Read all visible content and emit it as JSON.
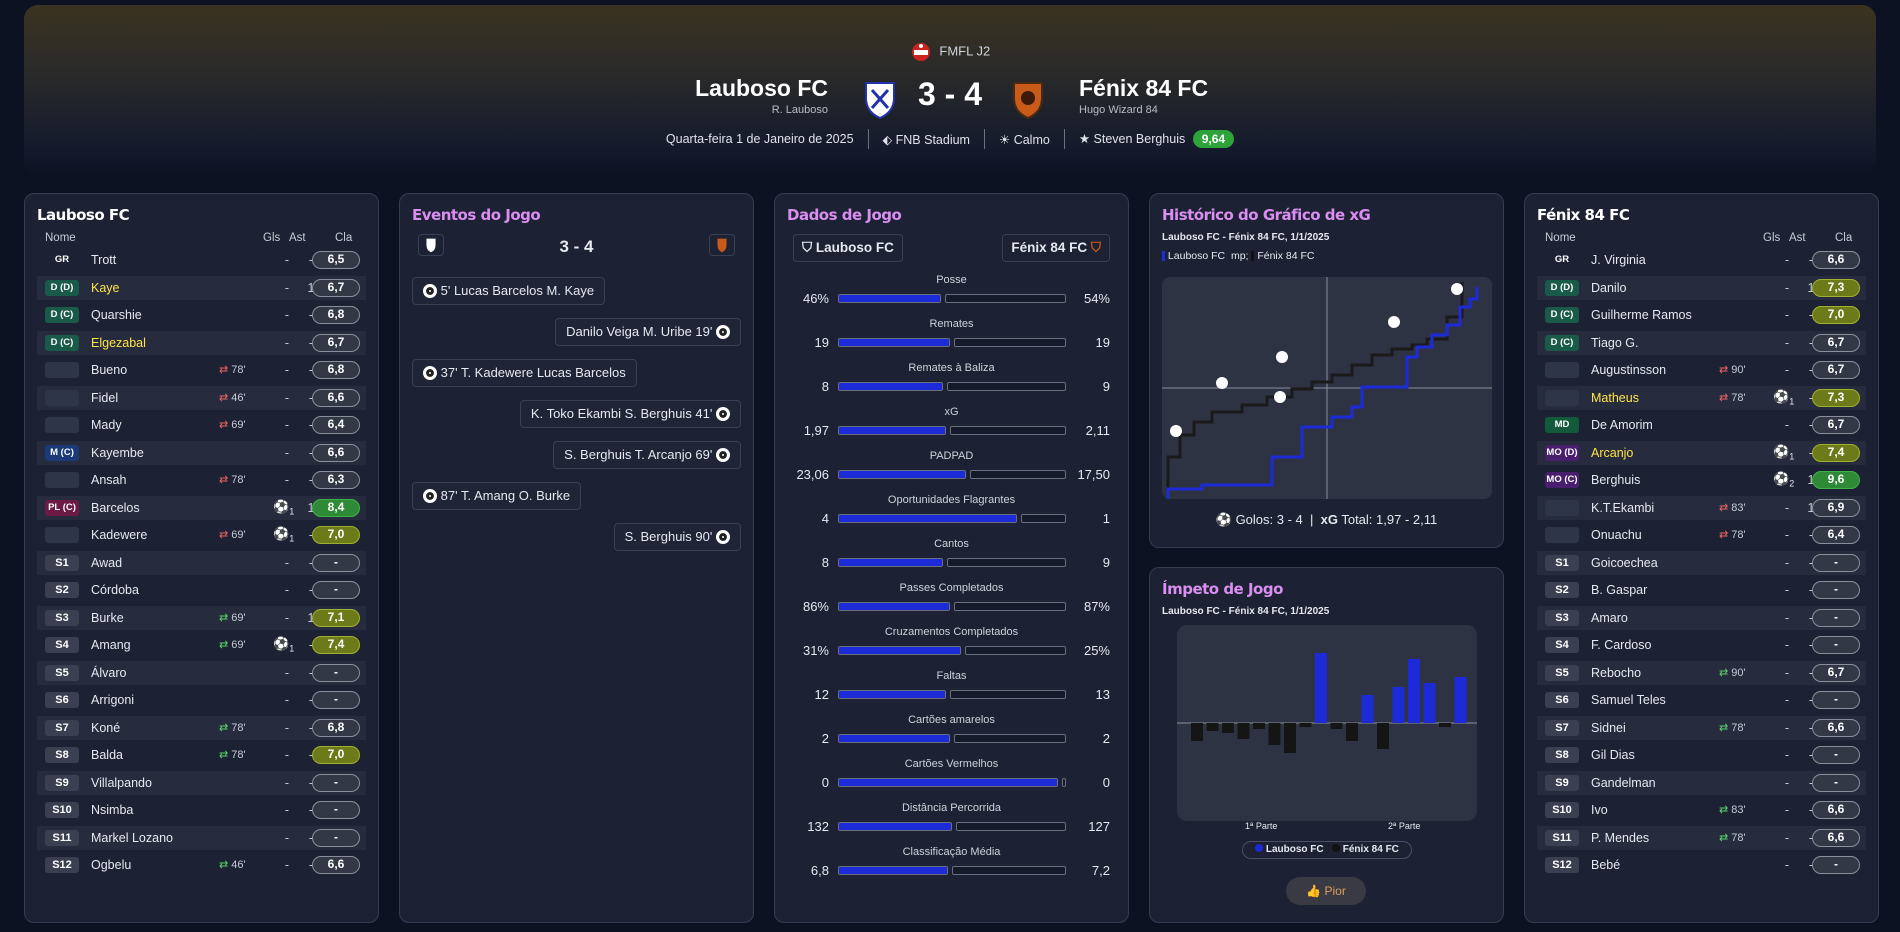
{
  "header": {
    "competition": "FMFL J2",
    "home": {
      "name": "Lauboso FC",
      "manager": "R. Lauboso"
    },
    "away": {
      "name": "Fénix 84 FC",
      "manager": "Hugo Wizard 84"
    },
    "score": "3 - 4",
    "date": "Quarta-feira 1 de Janeiro de 2025",
    "stadium": "FNB Stadium",
    "weather": "Calmo",
    "potm": "Steven Berghuis",
    "potm_rating": "9,64"
  },
  "home_panel": {
    "title": "Lauboso FC",
    "cols": {
      "name": "Nome",
      "gls": "Gls",
      "ast": "Ast",
      "rating": "Cla"
    },
    "players": [
      {
        "pos": "GR",
        "name": "Trott",
        "gls": "-",
        "ast": "-",
        "rating": "6,5"
      },
      {
        "pos": "D (D)",
        "name": "Kaye",
        "gls": "-",
        "ast": "1",
        "rating": "6,7"
      },
      {
        "pos": "D (C)",
        "name": "Quarshie",
        "gls": "-",
        "ast": "-",
        "rating": "6,8"
      },
      {
        "pos": "D (C)",
        "name": "Elgezabal",
        "gls": "-",
        "ast": "-",
        "rating": "6,7"
      },
      {
        "pos": "",
        "name": "Bueno",
        "sub": "78'",
        "gls": "-",
        "ast": "-",
        "rating": "6,8"
      },
      {
        "pos": "",
        "name": "Fidel",
        "sub": "46'",
        "gls": "-",
        "ast": "-",
        "rating": "6,6"
      },
      {
        "pos": "",
        "name": "Mady",
        "sub": "69'",
        "gls": "-",
        "ast": "-",
        "rating": "6,4"
      },
      {
        "pos": "M (C)",
        "name": "Kayembe",
        "gls": "-",
        "ast": "-",
        "rating": "6,6"
      },
      {
        "pos": "",
        "name": "Ansah",
        "sub": "78'",
        "gls": "-",
        "ast": "-",
        "rating": "6,3"
      },
      {
        "pos": "PL (C)",
        "name": "Barcelos",
        "goals": "1",
        "gls": "",
        "ast": "1",
        "rating": "8,4"
      },
      {
        "pos": "",
        "name": "Kadewere",
        "sub": "69'",
        "goals": "1",
        "gls": "",
        "ast": "-",
        "rating": "7,0"
      },
      {
        "pos": "S1",
        "name": "Awad",
        "gls": "-",
        "ast": "-",
        "rating": "-"
      },
      {
        "pos": "S2",
        "name": "Córdoba",
        "gls": "-",
        "ast": "-",
        "rating": "-"
      },
      {
        "pos": "S3",
        "name": "Burke",
        "subin": "69'",
        "gls": "-",
        "ast": "1",
        "rating": "7,1"
      },
      {
        "pos": "S4",
        "name": "Amang",
        "subin": "69'",
        "goals": "1",
        "gls": "",
        "ast": "-",
        "rating": "7,4"
      },
      {
        "pos": "S5",
        "name": "Álvaro",
        "gls": "-",
        "ast": "-",
        "rating": "-"
      },
      {
        "pos": "S6",
        "name": "Arrigoni",
        "gls": "-",
        "ast": "-",
        "rating": "-"
      },
      {
        "pos": "S7",
        "name": "Koné",
        "subin": "78'",
        "gls": "-",
        "ast": "-",
        "rating": "6,8"
      },
      {
        "pos": "S8",
        "name": "Balda",
        "subin": "78'",
        "gls": "-",
        "ast": "-",
        "rating": "7,0"
      },
      {
        "pos": "S9",
        "name": "Villalpando",
        "gls": "-",
        "ast": "-",
        "rating": "-"
      },
      {
        "pos": "S10",
        "name": "Nsimba",
        "gls": "-",
        "ast": "-",
        "rating": "-"
      },
      {
        "pos": "S11",
        "name": "Markel Lozano",
        "gls": "-",
        "ast": "-",
        "rating": "-"
      },
      {
        "pos": "S12",
        "name": "Ogbelu",
        "subin": "46'",
        "gls": "-",
        "ast": "-",
        "rating": "6,6"
      }
    ]
  },
  "away_panel": {
    "title": "Fénix 84 FC",
    "cols": {
      "name": "Nome",
      "gls": "Gls",
      "ast": "Ast",
      "rating": "Cla"
    },
    "players": [
      {
        "pos": "GR",
        "name": "J. Virginia",
        "gls": "-",
        "ast": "-",
        "rating": "6,6"
      },
      {
        "pos": "D (D)",
        "name": "Danilo",
        "gls": "-",
        "ast": "1",
        "rating": "7,3"
      },
      {
        "pos": "D (C)",
        "name": "Guilherme Ramos",
        "gls": "-",
        "ast": "-",
        "rating": "7,0"
      },
      {
        "pos": "D (C)",
        "name": "Tiago G.",
        "gls": "-",
        "ast": "-",
        "rating": "6,7"
      },
      {
        "pos": "",
        "name": "Augustinsson",
        "sub": "90'",
        "gls": "-",
        "ast": "-",
        "rating": "6,7"
      },
      {
        "pos": "",
        "name": "Matheus",
        "sub": "78'",
        "goals": "1",
        "gls": "",
        "ast": "-",
        "rating": "7,3"
      },
      {
        "pos": "MD",
        "name": "De Amorim",
        "gls": "-",
        "ast": "-",
        "rating": "6,7"
      },
      {
        "pos": "MO (D)",
        "name": "Arcanjo",
        "goals": "1",
        "gls": "",
        "ast": "-",
        "rating": "7,4"
      },
      {
        "pos": "MO (C)",
        "name": "Berghuis",
        "goals": "2",
        "gls": "",
        "ast": "1",
        "rating": "9,6"
      },
      {
        "pos": "",
        "name": "K.T.Ekambi",
        "sub": "83'",
        "gls": "-",
        "ast": "1",
        "rating": "6,9"
      },
      {
        "pos": "",
        "name": "Onuachu",
        "sub": "78'",
        "gls": "-",
        "ast": "-",
        "rating": "6,4"
      },
      {
        "pos": "S1",
        "name": "Goicoechea",
        "gls": "-",
        "ast": "-",
        "rating": "-"
      },
      {
        "pos": "S2",
        "name": "B. Gaspar",
        "gls": "-",
        "ast": "-",
        "rating": "-"
      },
      {
        "pos": "S3",
        "name": "Amaro",
        "gls": "-",
        "ast": "-",
        "rating": "-"
      },
      {
        "pos": "S4",
        "name": "F. Cardoso",
        "gls": "-",
        "ast": "-",
        "rating": "-"
      },
      {
        "pos": "S5",
        "name": "Rebocho",
        "subin": "90'",
        "gls": "-",
        "ast": "-",
        "rating": "6,7"
      },
      {
        "pos": "S6",
        "name": "Samuel Teles",
        "gls": "-",
        "ast": "-",
        "rating": "-"
      },
      {
        "pos": "S7",
        "name": "Sidnei",
        "subin": "78'",
        "gls": "-",
        "ast": "-",
        "rating": "6,6"
      },
      {
        "pos": "S8",
        "name": "Gil Dias",
        "gls": "-",
        "ast": "-",
        "rating": "-"
      },
      {
        "pos": "S9",
        "name": "Gandelman",
        "gls": "-",
        "ast": "-",
        "rating": "-"
      },
      {
        "pos": "S10",
        "name": "Ivo",
        "subin": "83'",
        "gls": "-",
        "ast": "-",
        "rating": "6,6"
      },
      {
        "pos": "S11",
        "name": "P. Mendes",
        "subin": "78'",
        "gls": "-",
        "ast": "-",
        "rating": "6,6"
      },
      {
        "pos": "S12",
        "name": "Bebé",
        "gls": "-",
        "ast": "-",
        "rating": "-"
      }
    ]
  },
  "events": {
    "title": "Eventos do Jogo",
    "score": "3 - 4",
    "items": [
      {
        "side": "home",
        "text": "5'  Lucas Barcelos  M. Kaye"
      },
      {
        "side": "away",
        "text": "Danilo Veiga  M. Uribe  19'"
      },
      {
        "side": "home",
        "text": "37'  T. Kadewere  Lucas Barcelos"
      },
      {
        "side": "away",
        "text": "K. Toko Ekambi  S. Berghuis  41'"
      },
      {
        "side": "away",
        "text": "S. Berghuis  T. Arcanjo  69'"
      },
      {
        "side": "home",
        "text": "87'  T. Amang  O. Burke"
      },
      {
        "side": "away",
        "text": "S. Berghuis  90'"
      }
    ]
  },
  "stats": {
    "title": "Dados de Jogo",
    "home": "Lauboso FC",
    "away": "Fénix 84 FC",
    "rows": [
      {
        "label": "Posse",
        "h": "46%",
        "a": "54%",
        "hf": 0.46
      },
      {
        "label": "Remates",
        "h": "19",
        "a": "19",
        "hf": 0.5
      },
      {
        "label": "Remates à Baliza",
        "h": "8",
        "a": "9",
        "hf": 0.47
      },
      {
        "label": "xG",
        "h": "1,97",
        "a": "2,11",
        "hf": 0.48
      },
      {
        "label": "PADPAD",
        "h": "23,06",
        "a": "17,50",
        "hf": 0.57
      },
      {
        "label": "Oportunidades Flagrantes",
        "h": "4",
        "a": "1",
        "hf": 0.8
      },
      {
        "label": "Cantos",
        "h": "8",
        "a": "9",
        "hf": 0.47
      },
      {
        "label": "Passes Completados",
        "h": "86%",
        "a": "87%",
        "hf": 0.5
      },
      {
        "label": "Cruzamentos Completados",
        "h": "31%",
        "a": "25%",
        "hf": 0.55
      },
      {
        "label": "Faltas",
        "h": "12",
        "a": "13",
        "hf": 0.48
      },
      {
        "label": "Cartões amarelos",
        "h": "2",
        "a": "2",
        "hf": 0.5
      },
      {
        "label": "Cartões Vermelhos",
        "h": "0",
        "a": "0",
        "hf": 0.98
      },
      {
        "label": "Distância Percorrida",
        "h": "132",
        "a": "127",
        "hf": 0.51
      },
      {
        "label": "Classificação Média",
        "h": "6,8",
        "a": "7,2",
        "hf": 0.49
      }
    ]
  },
  "xg": {
    "title": "Histórico do Gráfico de xG",
    "subtitle": "Lauboso FC - Fénix 84 FC, 1/1/2025",
    "legend_home": "Lauboso FC",
    "legend_away": "Fénix 84 FC",
    "goals_label": "Golos:",
    "goals": "3 - 4",
    "xg_label": "xG",
    "total_label": "Total:",
    "total": "1,97  -  2,11"
  },
  "momentum": {
    "title": "Ímpeto de Jogo",
    "subtitle": "Lauboso FC - Fénix 84 FC, 1/1/2025",
    "half1": "1ª Parte",
    "half2": "2ª Parte",
    "legend_home": "Lauboso FC",
    "legend_away": "Fénix 84 FC",
    "button": "Pior"
  },
  "colors": {
    "home": "#1d2ad8",
    "away": "#1a1a1a",
    "accent": "#d98ef0"
  }
}
